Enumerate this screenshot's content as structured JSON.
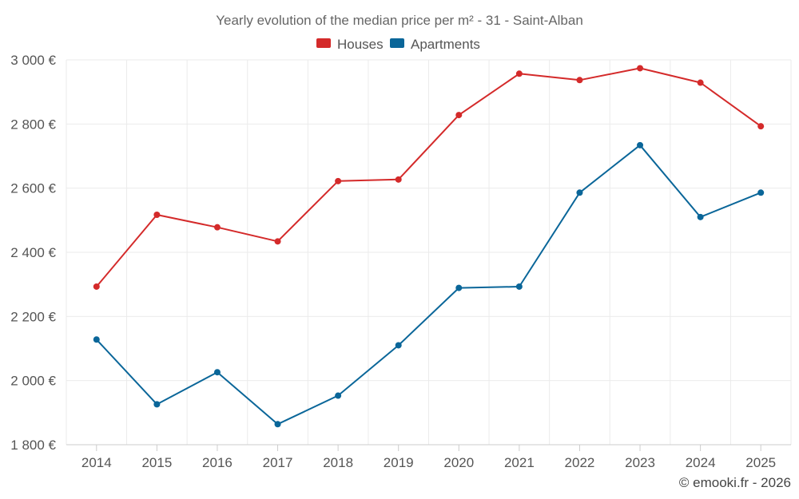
{
  "chart_data": {
    "type": "line",
    "title": "Yearly evolution of the median price per m² - 31 - Saint-Alban",
    "categories": [
      "2014",
      "2015",
      "2016",
      "2017",
      "2018",
      "2019",
      "2020",
      "2021",
      "2022",
      "2023",
      "2024",
      "2025"
    ],
    "series": [
      {
        "name": "Houses",
        "color": "#d42a2a",
        "values": [
          2293,
          2517,
          2478,
          2434,
          2622,
          2627,
          2828,
          2957,
          2937,
          2974,
          2929,
          2793
        ]
      },
      {
        "name": "Apartments",
        "color": "#0a6699",
        "values": [
          2128,
          1926,
          2026,
          1864,
          1953,
          2110,
          2289,
          2293,
          2586,
          2734,
          2510,
          2586
        ]
      }
    ],
    "ylim": [
      1800,
      3000
    ],
    "yticks": [
      1800,
      2000,
      2200,
      2400,
      2600,
      2800,
      3000
    ],
    "ytick_labels": [
      "1 800 €",
      "2 000 €",
      "2 200 €",
      "2 400 €",
      "2 600 €",
      "2 800 €",
      "3 000 €"
    ],
    "xlabel": "",
    "ylabel": "",
    "grid": true,
    "legend_position": "top-center"
  },
  "credit": "© emooki.fr - 2026"
}
